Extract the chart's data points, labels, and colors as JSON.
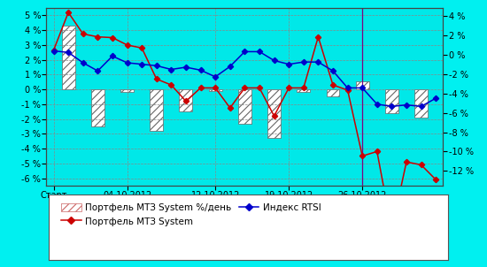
{
  "bg_color": "#00f0f0",
  "plot_bg_color": "#00e8e8",
  "left_ylim": [
    -6.5,
    5.5
  ],
  "left_yticks": [
    -6,
    -5,
    -4,
    -3,
    -2,
    -1,
    0,
    1,
    2,
    3,
    4,
    5
  ],
  "right_yticks": [
    -12,
    -10,
    -8,
    -6,
    -4,
    -2,
    0,
    2,
    4
  ],
  "right_ylim": [
    -13.5,
    4.8
  ],
  "x_tick_positions": [
    0,
    5,
    11,
    16,
    21
  ],
  "x_labels": [
    "Старт",
    "04.10.2012",
    "12.10.2012",
    "19.10.2012",
    "26.10.2012"
  ],
  "xlim": [
    -0.5,
    26.5
  ],
  "bar_x": [
    1,
    3,
    5,
    7,
    9,
    11,
    13,
    15,
    17,
    19,
    21,
    23,
    25
  ],
  "bar_heights": [
    4.3,
    -2.5,
    -0.15,
    -2.8,
    -1.5,
    -0.1,
    -2.3,
    -3.3,
    -0.15,
    -0.5,
    0.55,
    -1.6,
    -1.9
  ],
  "bar_width": 0.9,
  "line1_x": [
    0,
    1,
    2,
    3,
    4,
    5,
    6,
    7,
    8,
    9,
    10,
    11,
    12,
    13,
    14,
    15,
    16,
    17,
    18,
    19,
    20,
    21,
    22,
    23,
    24,
    25,
    26
  ],
  "line1_y": [
    2.65,
    5.2,
    3.75,
    3.55,
    3.5,
    3.0,
    2.8,
    0.7,
    0.3,
    -0.8,
    0.1,
    0.1,
    -1.25,
    0.1,
    0.1,
    -1.8,
    0.1,
    0.1,
    3.55,
    0.3,
    -0.05,
    -4.5,
    -4.2,
    -9.5,
    -4.9,
    -5.1,
    -6.1
  ],
  "line2_x": [
    0,
    1,
    2,
    3,
    4,
    5,
    6,
    7,
    8,
    9,
    10,
    11,
    12,
    13,
    14,
    15,
    16,
    17,
    18,
    19,
    20,
    21,
    22,
    23,
    24,
    25,
    26
  ],
  "line2_y": [
    2.6,
    2.5,
    1.8,
    1.25,
    2.25,
    1.8,
    1.7,
    1.6,
    1.35,
    1.5,
    1.3,
    0.85,
    1.55,
    2.55,
    2.55,
    1.95,
    1.7,
    1.85,
    1.85,
    1.25,
    0.1,
    0.1,
    -1.0,
    -1.15,
    -1.05,
    -1.15,
    -0.6
  ],
  "vline_x": 21,
  "vline_color": "#800080",
  "line1_color": "#cc0000",
  "line2_color": "#0000cc",
  "marker_color1": "#cc0000",
  "marker_color2": "#0000cc",
  "bar_facecolor": "#ffffff",
  "bar_edgecolor": "#666666",
  "bar_hatch": "////",
  "hatch_color": "#cc6666",
  "grid_color": "#888888",
  "grid_style": "--",
  "legend_bg": "#ffffff",
  "legend_edge": "#555555",
  "legend_label1": "Портфель МТЗ System %/день",
  "legend_label2": "Портфель МТЗ System",
  "legend_label3": "Индекс RTSI"
}
